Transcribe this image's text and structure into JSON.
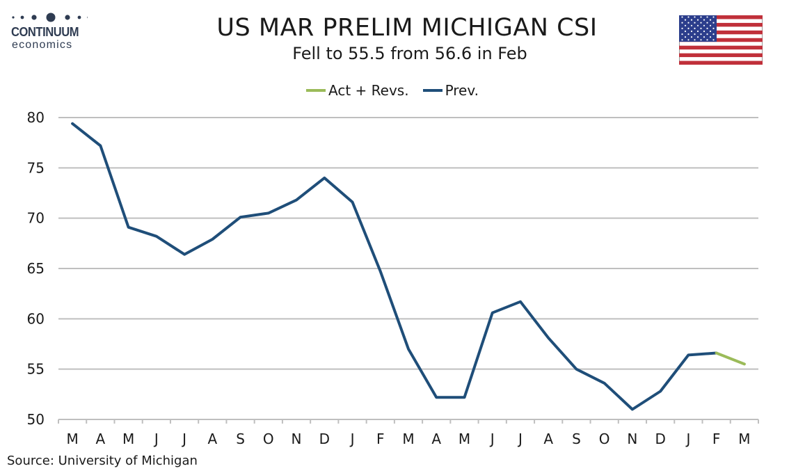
{
  "header": {
    "logo_brand": "CONTINUUM",
    "logo_sub": "economics",
    "title": "US MAR PRELIM MICHIGAN CSI",
    "subtitle": "Fell to 55.5 from 56.6 in Feb",
    "flag_icon": "us-flag-icon"
  },
  "source": "Source: University of Michigan",
  "colors": {
    "act": "#9bbb59",
    "prev": "#1f4e79",
    "grid": "#bfbfbf"
  },
  "chart_data": {
    "type": "line",
    "title": "US MAR PRELIM MICHIGAN CSI",
    "subtitle": "Fell to 55.5 from 56.6 in Feb",
    "categories": [
      "M",
      "A",
      "M",
      "J",
      "J",
      "A",
      "S",
      "O",
      "N",
      "D",
      "J",
      "F",
      "M",
      "A",
      "M",
      "J",
      "J",
      "A",
      "S",
      "O",
      "N",
      "D",
      "J",
      "F",
      "M"
    ],
    "series": [
      {
        "name": "Act + Revs.",
        "color": "#9bbb59",
        "values": [
          null,
          null,
          null,
          null,
          null,
          null,
          null,
          null,
          null,
          null,
          null,
          null,
          null,
          null,
          null,
          null,
          null,
          null,
          null,
          null,
          null,
          null,
          null,
          56.6,
          55.5
        ]
      },
      {
        "name": "Prev.",
        "color": "#1f4e79",
        "values": [
          79.4,
          77.2,
          69.1,
          68.2,
          66.4,
          67.9,
          70.1,
          70.5,
          71.8,
          74.0,
          71.6,
          64.7,
          57.0,
          52.2,
          52.2,
          60.6,
          61.7,
          58.1,
          55.0,
          53.6,
          51.0,
          52.8,
          56.4,
          56.6,
          null
        ]
      }
    ],
    "ylim": [
      50,
      80
    ],
    "yticks": [
      50,
      55,
      60,
      65,
      70,
      75,
      80
    ],
    "grid": true,
    "legend_position": "top-center"
  }
}
